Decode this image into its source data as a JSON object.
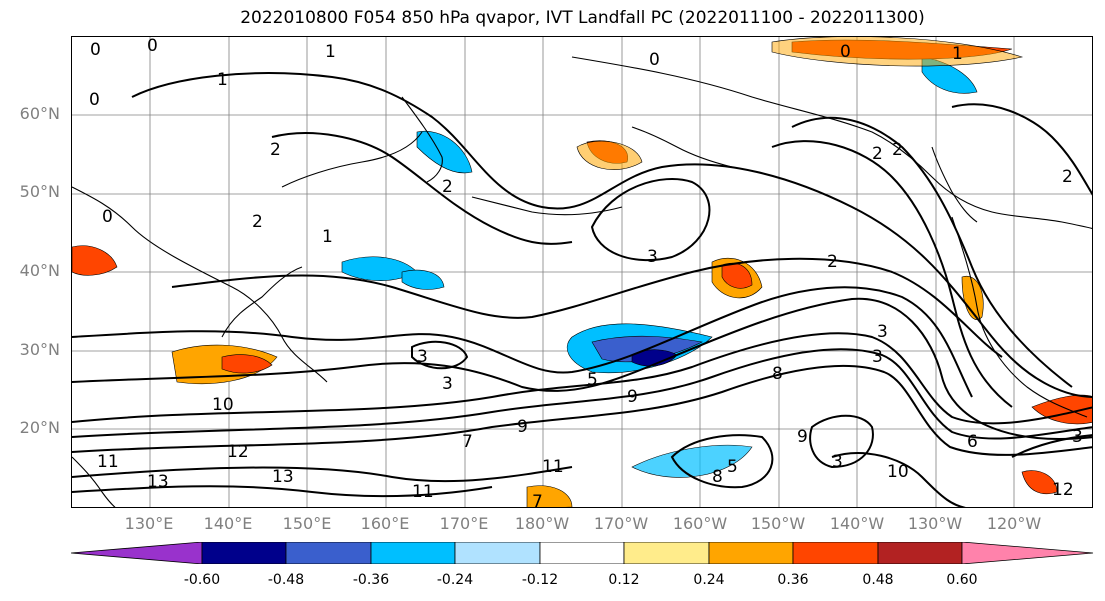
{
  "title": "2022010800 F054 850 hPa qvapor, IVT Landfall PC (2022011100 - 2022011300)",
  "map": {
    "lat_labels": [
      "60°N",
      "50°N",
      "40°N",
      "30°N",
      "20°N"
    ],
    "lon_labels": [
      "130°E",
      "140°E",
      "150°E",
      "160°E",
      "170°E",
      "180°W",
      "170°W",
      "160°W",
      "150°W",
      "140°W",
      "130°W",
      "120°W"
    ],
    "contour_labels": [
      "0",
      "0",
      "1",
      "1",
      "0",
      "2",
      "2",
      "1",
      "0",
      "2",
      "3",
      "2",
      "3",
      "3",
      "3",
      "3",
      "3",
      "2",
      "5",
      "7",
      "8",
      "9",
      "9",
      "10",
      "11",
      "11",
      "12",
      "13",
      "13",
      "11",
      "10",
      "9",
      "8",
      "7",
      "6",
      "5",
      "3",
      "12",
      "2",
      "2",
      "1",
      "0",
      "0"
    ],
    "grid": true,
    "colors": {
      "coast": "#000000",
      "grid": "#808080",
      "contour": "#000000"
    }
  },
  "colorbar": {
    "colors": [
      "#9932cc",
      "#00008b",
      "#3a5fcd",
      "#00bfff",
      "#b0e2ff",
      "#ffffff",
      "#ffec8b",
      "#ffa500",
      "#ff4500",
      "#b22222",
      "#ff82ab"
    ],
    "ticks": [
      "-0.60",
      "-0.48",
      "-0.36",
      "-0.24",
      "-0.12",
      "0.12",
      "0.24",
      "0.36",
      "0.48",
      "0.60"
    ],
    "extend": "both"
  }
}
